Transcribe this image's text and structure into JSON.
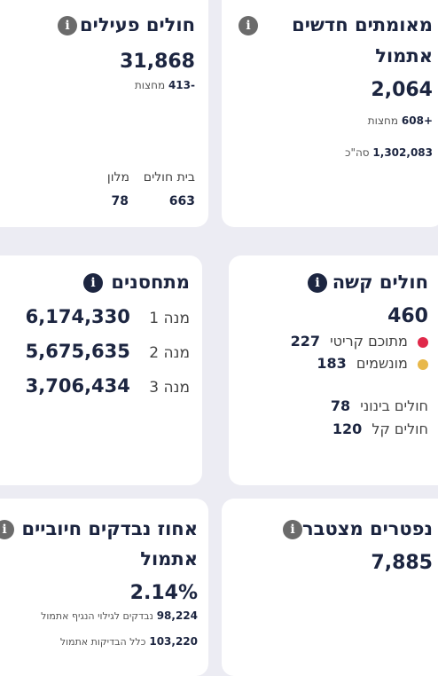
{
  "cards": {
    "new_verified": {
      "title_line1": "מאומתים חדשים",
      "title_line2": "אתמול",
      "value": "2,064",
      "delta": "+608",
      "delta_label": "מחצות",
      "total": "1,302,083",
      "total_label": "סה\"כ"
    },
    "active_patients": {
      "title": "חולים פעילים",
      "value": "31,868",
      "delta": "-413",
      "delta_label": "מחצות",
      "hospital_label": "בית חולים",
      "hotel_label": "מלון",
      "hospital_value": "663",
      "hotel_value": "78"
    },
    "severe": {
      "title": "חולים קשה",
      "value": "460",
      "critical_label": "מתוכם קריטי",
      "critical_value": "227",
      "ventilated_label": "מונשמים",
      "ventilated_value": "183",
      "moderate_label": "חולים בינוני",
      "moderate_value": "78",
      "mild_label": "חולים קל",
      "mild_value": "120"
    },
    "vaccinated": {
      "title": "מתחסנים",
      "dose1_label": "מנה 1",
      "dose1_value": "6,174,330",
      "dose2_label": "מנה 2",
      "dose2_value": "5,675,635",
      "dose3_label": "מנה 3",
      "dose3_value": "3,706,434"
    },
    "deceased": {
      "title": "נפטרים מצטבר",
      "value": "7,885"
    },
    "positive_rate": {
      "title_line1": "אחוז נבדקים חיוביים",
      "title_line2": "אתמול",
      "value": "2.14%",
      "tested_value": "98,224",
      "tested_label": "נבדקים לגילוי הנגיף אתמול",
      "total_tests_value": "103,220",
      "total_tests_label": "כלל הבדיקות אתמול"
    }
  },
  "icons": {
    "info": "i"
  },
  "colors": {
    "critical": "#e0294a",
    "ventilated": "#e8b84a",
    "info_grey": "#6b6b6b",
    "info_dark": "#1c2540"
  }
}
